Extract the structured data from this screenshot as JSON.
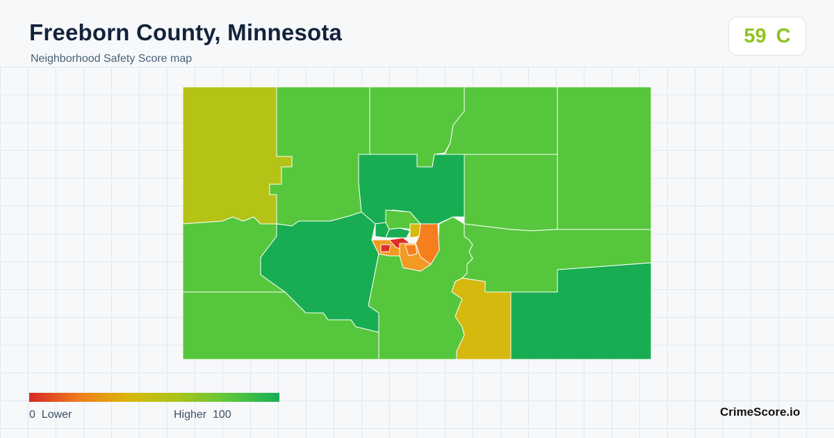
{
  "header": {
    "title": "Freeborn County, Minnesota",
    "subtitle": "Neighborhood Safety Score map"
  },
  "score": {
    "value": "59",
    "grade": "C",
    "color": "#8fc31f"
  },
  "legend": {
    "min_label": "0",
    "low_label": "Lower",
    "high_label": "Higher",
    "max_label": "100",
    "gradient": [
      "#d62828",
      "#f07d1c",
      "#d8b80c",
      "#a8c41a",
      "#5cc73c",
      "#16ad57"
    ]
  },
  "brand": "CrimeScore.io",
  "palette": {
    "olive": "#b5c216",
    "green": "#56c73c",
    "dark_green": "#18ad52",
    "gold": "#d5b90e",
    "orange": "#f47f1c",
    "light_orange": "#f29a22",
    "red": "#dc2f25"
  }
}
